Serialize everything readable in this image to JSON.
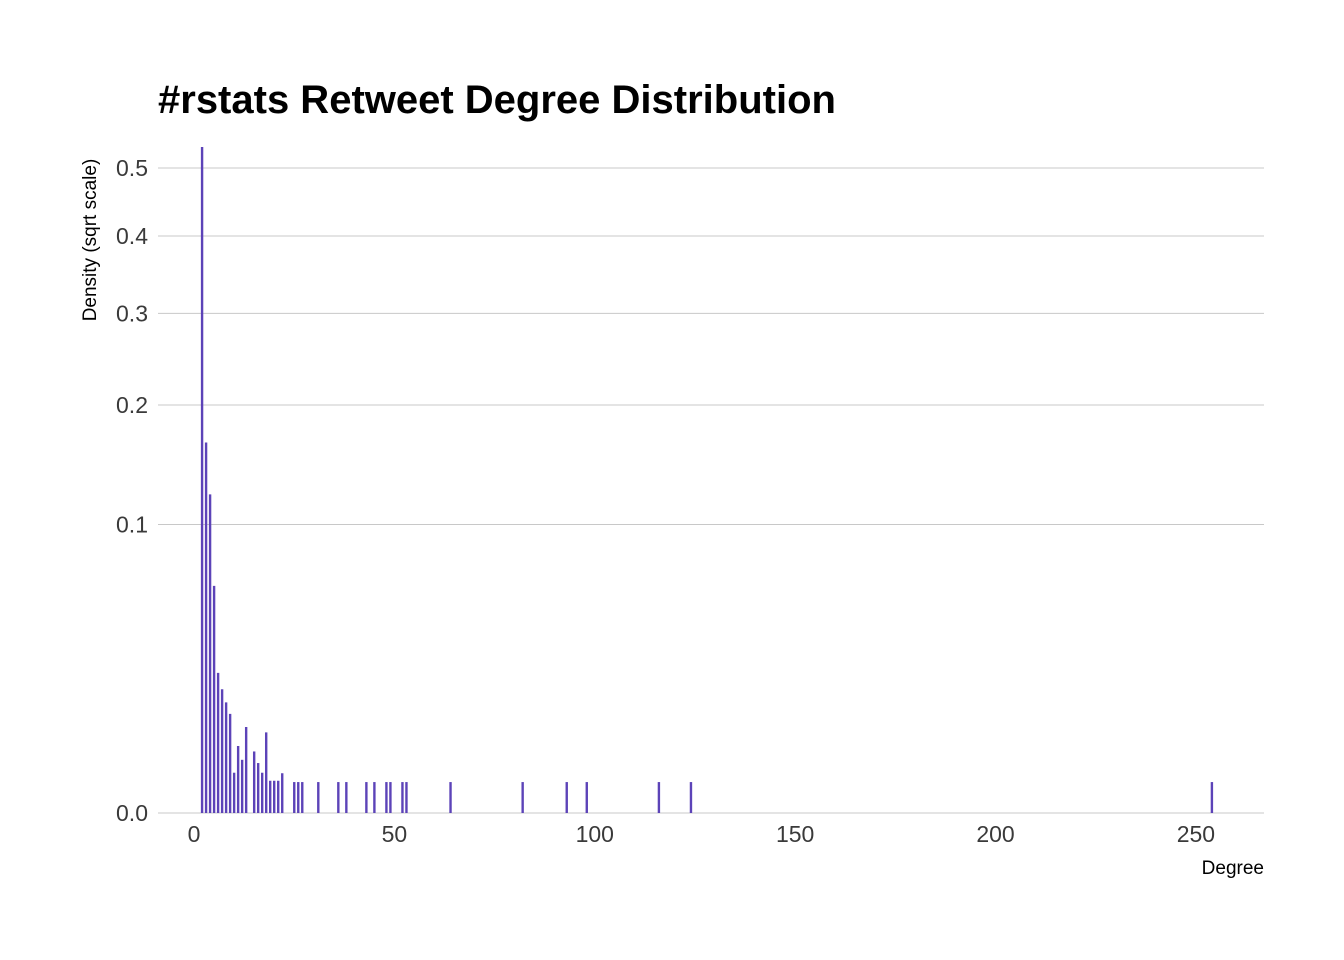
{
  "chart_data": {
    "type": "bar",
    "title": "#rstats Retweet Degree Distribution",
    "xlabel": "Degree",
    "ylabel": "Density (sqrt scale)",
    "y_scale": "sqrt",
    "xlim": [
      -9,
      267
    ],
    "ylim": [
      0,
      0.533
    ],
    "x_ticks": [
      0,
      50,
      100,
      150,
      200,
      250
    ],
    "x_tick_labels": [
      "0",
      "50",
      "100",
      "150",
      "200",
      "250"
    ],
    "y_ticks": [
      0.0,
      0.1,
      0.2,
      0.3,
      0.4,
      0.5
    ],
    "y_tick_labels": [
      "0.0",
      "0.1",
      "0.2",
      "0.3",
      "0.4",
      "0.5"
    ],
    "grid": "horizontal",
    "bar_color": "#5c43b8",
    "x": [
      2,
      3,
      4,
      5,
      6,
      7,
      8,
      9,
      10,
      11,
      12,
      13,
      15,
      16,
      17,
      18,
      19,
      20,
      21,
      22,
      25,
      26,
      27,
      31,
      36,
      38,
      43,
      45,
      48,
      49,
      52,
      53,
      64,
      82,
      93,
      98,
      116,
      124,
      254
    ],
    "values": [
      0.533,
      0.165,
      0.122,
      0.062,
      0.0236,
      0.0184,
      0.0147,
      0.0118,
      0.00195,
      0.0054,
      0.0034,
      0.0089,
      0.00455,
      0.003,
      0.00195,
      0.0078,
      0.00125,
      0.00125,
      0.00125,
      0.0019,
      0.00115,
      0.00115,
      0.00115,
      0.00115,
      0.00115,
      0.00115,
      0.00115,
      0.00115,
      0.00115,
      0.00115,
      0.00115,
      0.00115,
      0.00115,
      0.00115,
      0.00115,
      0.00115,
      0.00115,
      0.00115,
      0.00115
    ]
  }
}
